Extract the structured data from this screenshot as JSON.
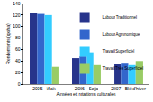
{
  "chart_data": {
    "type": "bar",
    "x_label": "Années et rotations culturales",
    "y_label": "Rendements (qx/ha)",
    "categories": [
      "2005 - Maïs",
      "2006 - Soja",
      "2007 - Blé d'hiver"
    ],
    "series": [
      {
        "name": "Labour Traditionnel",
        "color": "#27348b",
        "values": [
          123,
          45,
          35
        ]
      },
      {
        "name": "Labour Agronomique",
        "color": "#3366cc",
        "values": [
          122,
          48,
          37
        ]
      },
      {
        "name": "Travail Superficiel",
        "color": "#33ccff",
        "values": [
          120,
          55,
          33
        ]
      },
      {
        "name": "Travail Très Superficiel",
        "color": "#99cc66",
        "values": [
          30,
          33,
          40
        ]
      }
    ],
    "ylim": [
      0,
      140
    ],
    "yticks": [
      0,
      20,
      40,
      60,
      80,
      100,
      120,
      140
    ],
    "grid": false,
    "legend": "upper right"
  }
}
